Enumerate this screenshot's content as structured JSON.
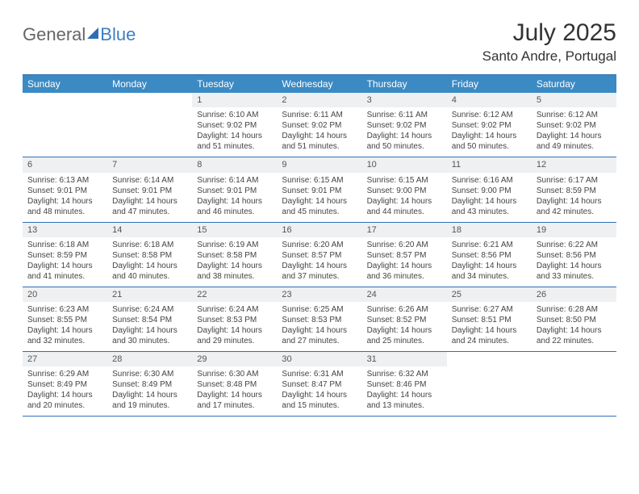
{
  "brand": {
    "part1": "General",
    "part2": "Blue"
  },
  "title": "July 2025",
  "location": "Santo Andre, Portugal",
  "colors": {
    "header_bg": "#3b8ac4",
    "border": "#2d6fb5",
    "daynum_bg": "#eef0f2"
  },
  "day_names": [
    "Sunday",
    "Monday",
    "Tuesday",
    "Wednesday",
    "Thursday",
    "Friday",
    "Saturday"
  ],
  "weeks": [
    [
      null,
      null,
      {
        "n": "1",
        "sr": "6:10 AM",
        "ss": "9:02 PM",
        "dl": "14 hours and 51 minutes."
      },
      {
        "n": "2",
        "sr": "6:11 AM",
        "ss": "9:02 PM",
        "dl": "14 hours and 51 minutes."
      },
      {
        "n": "3",
        "sr": "6:11 AM",
        "ss": "9:02 PM",
        "dl": "14 hours and 50 minutes."
      },
      {
        "n": "4",
        "sr": "6:12 AM",
        "ss": "9:02 PM",
        "dl": "14 hours and 50 minutes."
      },
      {
        "n": "5",
        "sr": "6:12 AM",
        "ss": "9:02 PM",
        "dl": "14 hours and 49 minutes."
      }
    ],
    [
      {
        "n": "6",
        "sr": "6:13 AM",
        "ss": "9:01 PM",
        "dl": "14 hours and 48 minutes."
      },
      {
        "n": "7",
        "sr": "6:14 AM",
        "ss": "9:01 PM",
        "dl": "14 hours and 47 minutes."
      },
      {
        "n": "8",
        "sr": "6:14 AM",
        "ss": "9:01 PM",
        "dl": "14 hours and 46 minutes."
      },
      {
        "n": "9",
        "sr": "6:15 AM",
        "ss": "9:01 PM",
        "dl": "14 hours and 45 minutes."
      },
      {
        "n": "10",
        "sr": "6:15 AM",
        "ss": "9:00 PM",
        "dl": "14 hours and 44 minutes."
      },
      {
        "n": "11",
        "sr": "6:16 AM",
        "ss": "9:00 PM",
        "dl": "14 hours and 43 minutes."
      },
      {
        "n": "12",
        "sr": "6:17 AM",
        "ss": "8:59 PM",
        "dl": "14 hours and 42 minutes."
      }
    ],
    [
      {
        "n": "13",
        "sr": "6:18 AM",
        "ss": "8:59 PM",
        "dl": "14 hours and 41 minutes."
      },
      {
        "n": "14",
        "sr": "6:18 AM",
        "ss": "8:58 PM",
        "dl": "14 hours and 40 minutes."
      },
      {
        "n": "15",
        "sr": "6:19 AM",
        "ss": "8:58 PM",
        "dl": "14 hours and 38 minutes."
      },
      {
        "n": "16",
        "sr": "6:20 AM",
        "ss": "8:57 PM",
        "dl": "14 hours and 37 minutes."
      },
      {
        "n": "17",
        "sr": "6:20 AM",
        "ss": "8:57 PM",
        "dl": "14 hours and 36 minutes."
      },
      {
        "n": "18",
        "sr": "6:21 AM",
        "ss": "8:56 PM",
        "dl": "14 hours and 34 minutes."
      },
      {
        "n": "19",
        "sr": "6:22 AM",
        "ss": "8:56 PM",
        "dl": "14 hours and 33 minutes."
      }
    ],
    [
      {
        "n": "20",
        "sr": "6:23 AM",
        "ss": "8:55 PM",
        "dl": "14 hours and 32 minutes."
      },
      {
        "n": "21",
        "sr": "6:24 AM",
        "ss": "8:54 PM",
        "dl": "14 hours and 30 minutes."
      },
      {
        "n": "22",
        "sr": "6:24 AM",
        "ss": "8:53 PM",
        "dl": "14 hours and 29 minutes."
      },
      {
        "n": "23",
        "sr": "6:25 AM",
        "ss": "8:53 PM",
        "dl": "14 hours and 27 minutes."
      },
      {
        "n": "24",
        "sr": "6:26 AM",
        "ss": "8:52 PM",
        "dl": "14 hours and 25 minutes."
      },
      {
        "n": "25",
        "sr": "6:27 AM",
        "ss": "8:51 PM",
        "dl": "14 hours and 24 minutes."
      },
      {
        "n": "26",
        "sr": "6:28 AM",
        "ss": "8:50 PM",
        "dl": "14 hours and 22 minutes."
      }
    ],
    [
      {
        "n": "27",
        "sr": "6:29 AM",
        "ss": "8:49 PM",
        "dl": "14 hours and 20 minutes."
      },
      {
        "n": "28",
        "sr": "6:30 AM",
        "ss": "8:49 PM",
        "dl": "14 hours and 19 minutes."
      },
      {
        "n": "29",
        "sr": "6:30 AM",
        "ss": "8:48 PM",
        "dl": "14 hours and 17 minutes."
      },
      {
        "n": "30",
        "sr": "6:31 AM",
        "ss": "8:47 PM",
        "dl": "14 hours and 15 minutes."
      },
      {
        "n": "31",
        "sr": "6:32 AM",
        "ss": "8:46 PM",
        "dl": "14 hours and 13 minutes."
      },
      null,
      null
    ]
  ],
  "labels": {
    "sunrise": "Sunrise: ",
    "sunset": "Sunset: ",
    "daylight": "Daylight: "
  }
}
